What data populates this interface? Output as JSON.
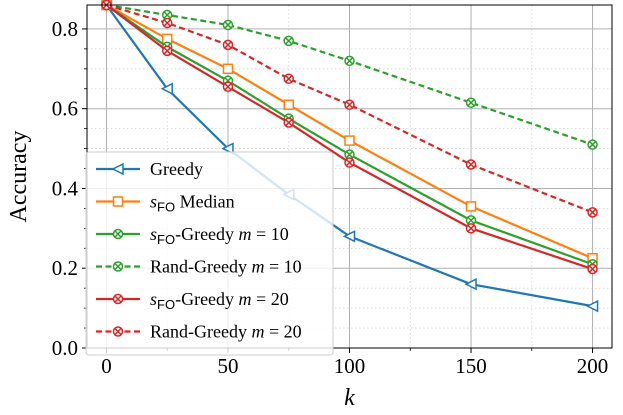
{
  "chart_data": {
    "type": "line",
    "xlabel": "k",
    "ylabel": "Accuracy",
    "xlim": [
      -8,
      208
    ],
    "ylim": [
      0.0,
      0.86
    ],
    "xticks": [
      0,
      50,
      100,
      150,
      200
    ],
    "yticks": [
      0.0,
      0.2,
      0.4,
      0.6,
      0.8
    ],
    "xtick_labels": [
      "0",
      "50",
      "100",
      "150",
      "200"
    ],
    "ytick_labels": [
      "0.0",
      "0.2",
      "0.4",
      "0.6",
      "0.8"
    ],
    "grid": true,
    "legend_position": "lower-left",
    "x": [
      0,
      25,
      50,
      75,
      100,
      150,
      200
    ],
    "series": [
      {
        "name": "Greedy",
        "legend_parts": [
          {
            "t": "Greedy",
            "s": "n"
          }
        ],
        "color": "#1f77b4",
        "dash": "solid",
        "marker": "triangle-left",
        "values": [
          0.86,
          0.65,
          0.5,
          0.385,
          0.28,
          0.16,
          0.105
        ]
      },
      {
        "name": "sFO Median",
        "legend_parts": [
          {
            "t": "s",
            "s": "m"
          },
          {
            "t": "FO",
            "s": "sub"
          },
          {
            "t": " Median",
            "s": "n"
          }
        ],
        "color": "#ff7f0e",
        "dash": "solid",
        "marker": "square",
        "values": [
          0.86,
          0.775,
          0.7,
          0.61,
          0.52,
          0.355,
          0.225
        ]
      },
      {
        "name": "sFO-Greedy m = 10",
        "legend_parts": [
          {
            "t": "s",
            "s": "m"
          },
          {
            "t": "FO",
            "s": "sub"
          },
          {
            "t": "-Greedy ",
            "s": "n"
          },
          {
            "t": "m",
            "s": "m"
          },
          {
            "t": " = 10",
            "s": "n"
          }
        ],
        "color": "#2ca02c",
        "dash": "solid",
        "marker": "x-circle",
        "values": [
          0.86,
          0.755,
          0.67,
          0.575,
          0.485,
          0.32,
          0.21
        ]
      },
      {
        "name": "Rand-Greedy m = 10",
        "legend_parts": [
          {
            "t": "Rand-Greedy ",
            "s": "n"
          },
          {
            "t": "m",
            "s": "m"
          },
          {
            "t": " = 10",
            "s": "n"
          }
        ],
        "color": "#2ca02c",
        "dash": "dashed",
        "marker": "x-circle",
        "values": [
          0.86,
          0.835,
          0.81,
          0.77,
          0.72,
          0.615,
          0.51
        ]
      },
      {
        "name": "sFO-Greedy m = 20",
        "legend_parts": [
          {
            "t": "s",
            "s": "m"
          },
          {
            "t": "FO",
            "s": "sub"
          },
          {
            "t": "-Greedy ",
            "s": "n"
          },
          {
            "t": "m",
            "s": "m"
          },
          {
            "t": " = 20",
            "s": "n"
          }
        ],
        "color": "#d62728",
        "dash": "solid",
        "marker": "x-circle",
        "values": [
          0.86,
          0.745,
          0.655,
          0.565,
          0.465,
          0.3,
          0.198
        ]
      },
      {
        "name": "Rand-Greedy m = 20",
        "legend_parts": [
          {
            "t": "Rand-Greedy ",
            "s": "n"
          },
          {
            "t": "m",
            "s": "m"
          },
          {
            "t": " = 20",
            "s": "n"
          }
        ],
        "color": "#d62728",
        "dash": "dashed",
        "marker": "x-circle",
        "values": [
          0.86,
          0.815,
          0.76,
          0.675,
          0.61,
          0.46,
          0.34
        ]
      }
    ]
  }
}
